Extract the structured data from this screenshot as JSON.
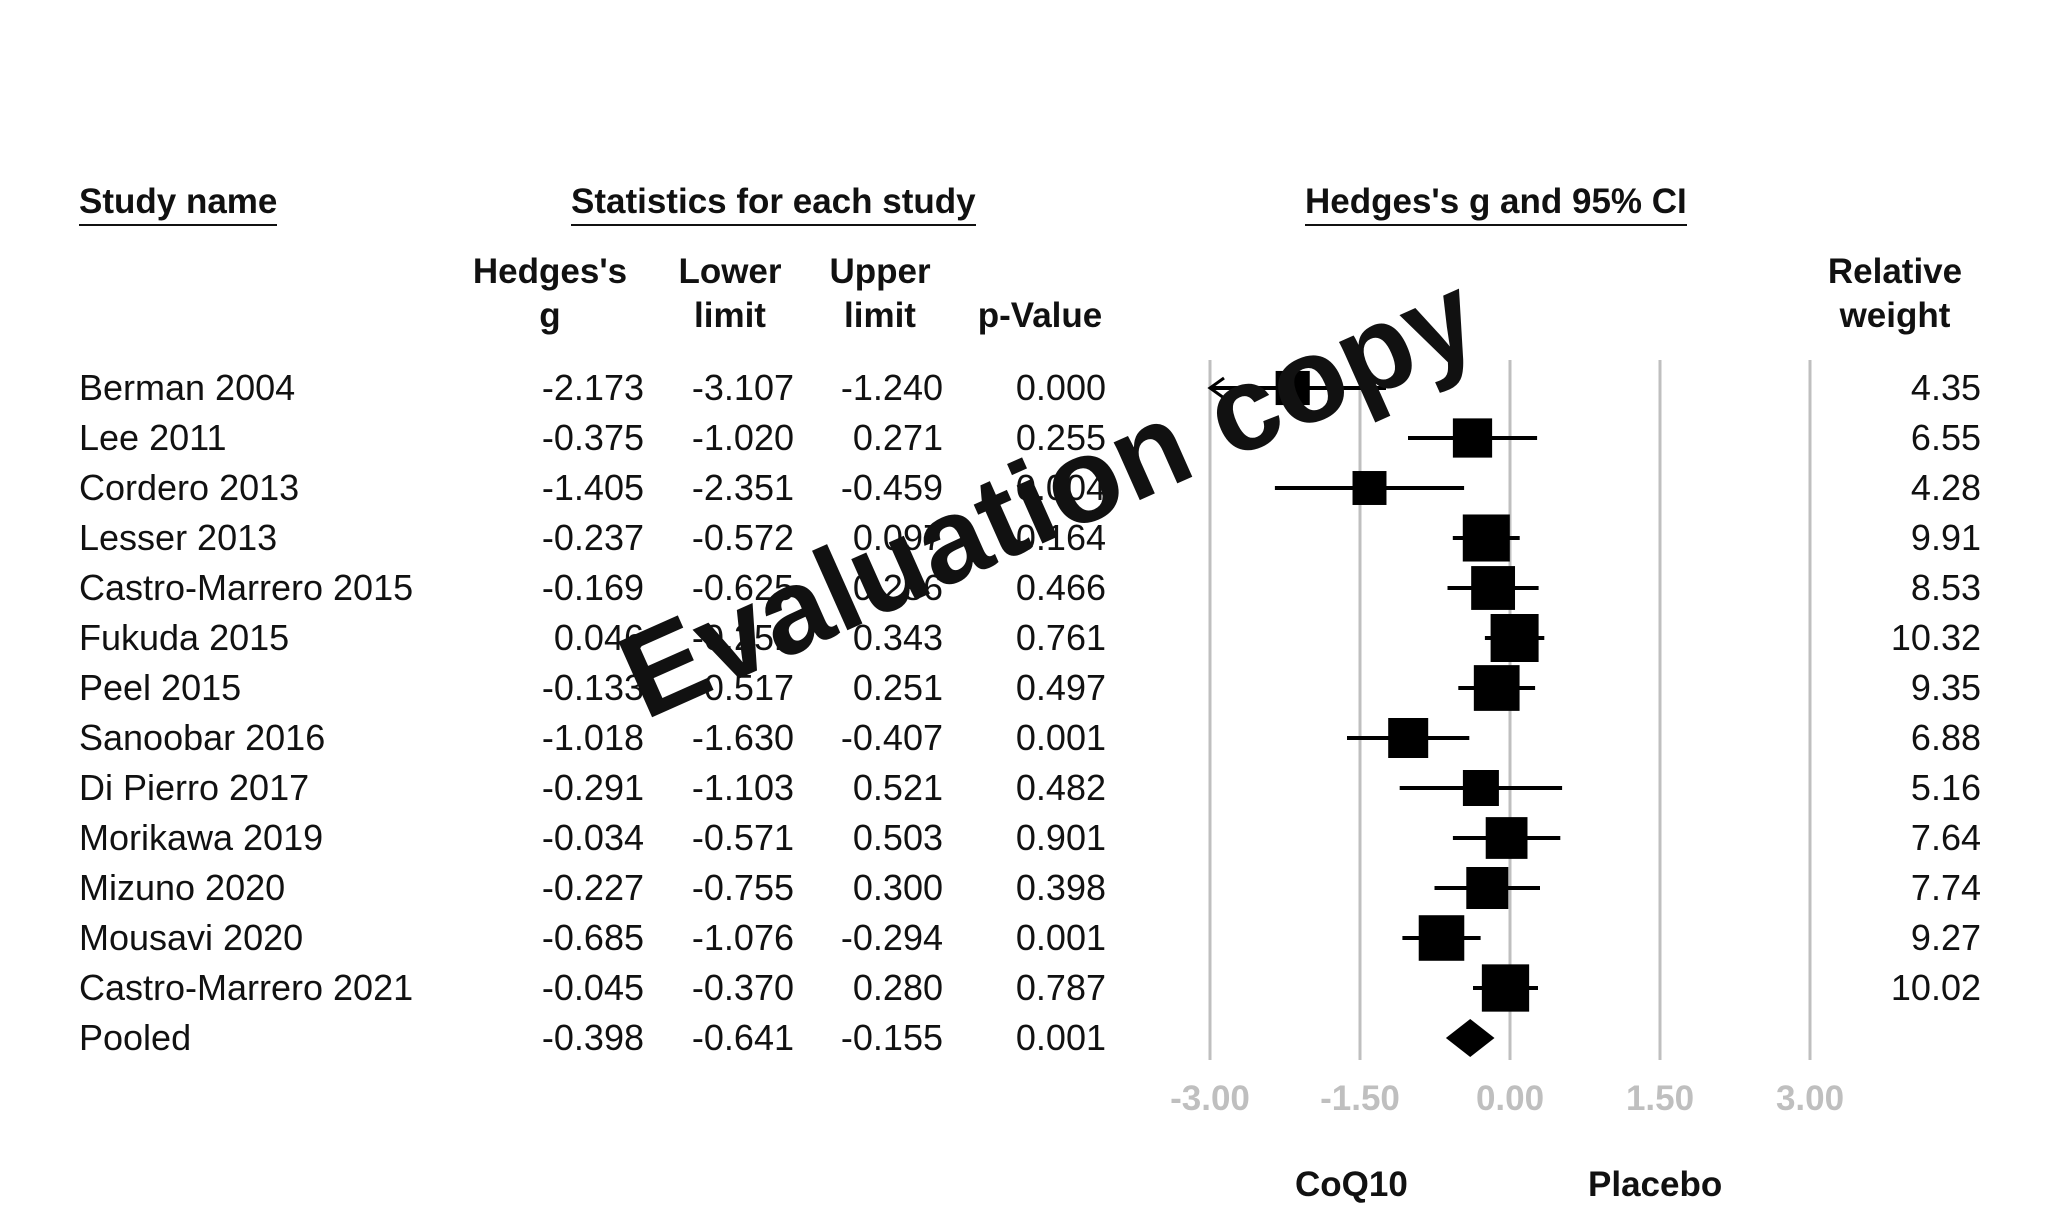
{
  "headers": {
    "study_name": "Study name",
    "statistics": "Statistics for each study",
    "ci": "Hedges's g and 95% CI",
    "hedges_line1": "Hedges's",
    "hedges_line2": "g",
    "lower_line1": "Lower",
    "lower_line2": "limit",
    "upper_line1": "Upper",
    "upper_line2": "limit",
    "pvalue": "p-Value",
    "weight_line1": "Relative",
    "weight_line2": "weight"
  },
  "axis_labels": {
    "left": "CoQ10",
    "right": "Placebo"
  },
  "watermark": "Evaluation copy",
  "chart_data": {
    "type": "forest",
    "xlim": [
      -3.0,
      3.0
    ],
    "x_ticks": [
      "-3.00",
      "-1.50",
      "0.00",
      "1.50",
      "3.00"
    ],
    "rows": [
      {
        "name": "Berman 2004",
        "g": "-2.173",
        "lower": "-3.107",
        "upper": "-1.240",
        "p": "0.000",
        "weight": "4.35"
      },
      {
        "name": "Lee 2011",
        "g": "-0.375",
        "lower": "-1.020",
        "upper": "0.271",
        "p": "0.255",
        "weight": "6.55"
      },
      {
        "name": "Cordero 2013",
        "g": "-1.405",
        "lower": "-2.351",
        "upper": "-0.459",
        "p": "0.004",
        "weight": "4.28"
      },
      {
        "name": "Lesser 2013",
        "g": "-0.237",
        "lower": "-0.572",
        "upper": "0.097",
        "p": "0.164",
        "weight": "9.91"
      },
      {
        "name": "Castro-Marrero 2015",
        "g": "-0.169",
        "lower": "-0.625",
        "upper": "0.286",
        "p": "0.466",
        "weight": "8.53"
      },
      {
        "name": "Fukuda 2015",
        "g": "0.046",
        "lower": "-0.251",
        "upper": "0.343",
        "p": "0.761",
        "weight": "10.32"
      },
      {
        "name": "Peel 2015",
        "g": "-0.133",
        "lower": "-0.517",
        "upper": "0.251",
        "p": "0.497",
        "weight": "9.35"
      },
      {
        "name": "Sanoobar 2016",
        "g": "-1.018",
        "lower": "-1.630",
        "upper": "-0.407",
        "p": "0.001",
        "weight": "6.88"
      },
      {
        "name": "Di Pierro 2017",
        "g": "-0.291",
        "lower": "-1.103",
        "upper": "0.521",
        "p": "0.482",
        "weight": "5.16"
      },
      {
        "name": "Morikawa 2019",
        "g": "-0.034",
        "lower": "-0.571",
        "upper": "0.503",
        "p": "0.901",
        "weight": "7.64"
      },
      {
        "name": "Mizuno 2020",
        "g": "-0.227",
        "lower": "-0.755",
        "upper": "0.300",
        "p": "0.398",
        "weight": "7.74"
      },
      {
        "name": "Mousavi 2020",
        "g": "-0.685",
        "lower": "-1.076",
        "upper": "-0.294",
        "p": "0.001",
        "weight": "9.27"
      },
      {
        "name": "Castro-Marrero 2021",
        "g": "-0.045",
        "lower": "-0.370",
        "upper": "0.280",
        "p": "0.787",
        "weight": "10.02"
      },
      {
        "name": "Pooled",
        "g": "-0.398",
        "lower": "-0.641",
        "upper": "-0.155",
        "p": "0.001",
        "weight": "",
        "pooled": true
      }
    ]
  }
}
